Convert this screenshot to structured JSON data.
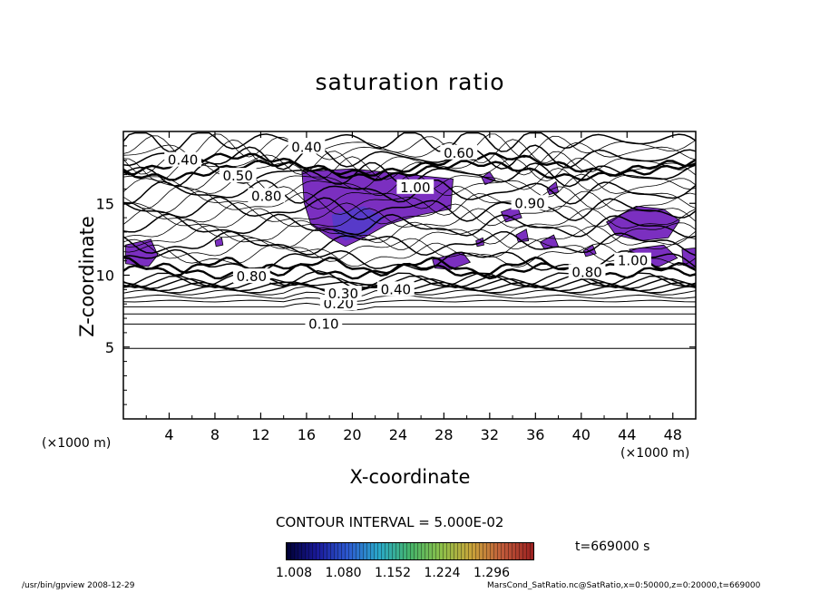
{
  "chart_data": {
    "type": "contour",
    "title": "saturation ratio",
    "xlabel": "X-coordinate",
    "ylabel": "Z-coordinate",
    "x_unit_left": "(×1000 m)",
    "x_unit_right": "(×1000 m)",
    "xlim": [
      0,
      50
    ],
    "ylim": [
      0,
      20
    ],
    "x_ticks": [
      4,
      8,
      12,
      16,
      20,
      24,
      28,
      32,
      36,
      40,
      44,
      48
    ],
    "y_ticks": [
      5,
      10,
      15
    ],
    "contour_interval_label": "CONTOUR INTERVAL = 5.000E-02",
    "contour_labels": [
      {
        "text": "0.10",
        "x": 17.5,
        "y": 6.6
      },
      {
        "text": "0.20",
        "x": 18.8,
        "y": 8.0
      },
      {
        "text": "0.30",
        "x": 19.2,
        "y": 8.7
      },
      {
        "text": "0.40",
        "x": 23.8,
        "y": 9.0
      },
      {
        "text": "0.80",
        "x": 11.2,
        "y": 9.9
      },
      {
        "text": "0.80",
        "x": 40.5,
        "y": 10.2
      },
      {
        "text": "0.40",
        "x": 5.2,
        "y": 18.0
      },
      {
        "text": "0.40",
        "x": 16.0,
        "y": 18.9
      },
      {
        "text": "0.60",
        "x": 29.3,
        "y": 18.5
      },
      {
        "text": "0.50",
        "x": 10.0,
        "y": 16.9
      },
      {
        "text": "1.00",
        "x": 25.5,
        "y": 16.1
      },
      {
        "text": "0.80",
        "x": 12.5,
        "y": 15.5
      },
      {
        "text": "0.90",
        "x": 35.5,
        "y": 15.0
      },
      {
        "text": "1.00",
        "x": 44.5,
        "y": 11.0
      }
    ],
    "supersaturated_regions_value_min": 1.008,
    "colorbar": {
      "ticks": [
        "1.008",
        "1.080",
        "1.152",
        "1.224",
        "1.296"
      ],
      "range": [
        1.008,
        1.344
      ],
      "colors": [
        "#000033",
        "#1a1a9a",
        "#2d5bd0",
        "#2aa9c9",
        "#45b46a",
        "#8cc04a",
        "#c9a43a",
        "#c05a3a",
        "#9a2020"
      ]
    },
    "fill_color": "#7b2fc0",
    "fill_color_dark": "#3a44d0",
    "grid": false
  },
  "time_label": "t=669000  s",
  "footer": {
    "left": "/usr/bin/gpview   2008-12-29",
    "right": "MarsCond_SatRatio.nc@SatRatio,x=0:50000,z=0:20000,t=669000"
  }
}
